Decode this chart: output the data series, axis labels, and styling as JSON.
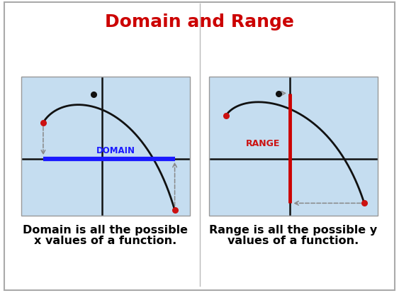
{
  "title": "Domain and Range",
  "title_color": "#cc0000",
  "title_fontsize": 18,
  "bg_color": "#ffffff",
  "panel_bg_color": "#c5ddf0",
  "border_color": "#999999",
  "left_caption_l1": "Domain is all the possible",
  "left_caption_l2": "x values of a function.",
  "right_caption_l1": "Range is all the possible y",
  "right_caption_l2": "values of a function.",
  "caption_fontsize": 11.5,
  "domain_label": "DOMAIN",
  "domain_label_color": "#1a1aff",
  "range_label": "RANGE",
  "range_label_color": "#cc1111",
  "curve_color": "#111111",
  "axis_color": "#111111",
  "dot_color_red": "#cc1111",
  "dot_color_black": "#111111",
  "domain_line_color": "#1a1aff",
  "range_line_color": "#cc0000",
  "dashed_color": "#888888",
  "outer_border_color": "#aaaaaa"
}
